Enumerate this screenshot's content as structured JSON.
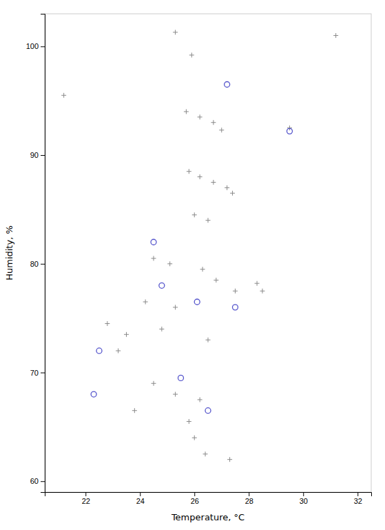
{
  "chart_data": {
    "type": "scatter",
    "xlabel": "Temperature, °C",
    "ylabel": "Humidity, %",
    "xlim": [
      20.5,
      32.5
    ],
    "ylim": [
      59,
      103
    ],
    "xticks": [
      22,
      24,
      26,
      28,
      30,
      32
    ],
    "yticks": [
      60,
      70,
      80,
      90,
      100
    ],
    "grid": false,
    "series": [
      {
        "color": "#888888",
        "marker": "plus",
        "x": [
          21.2,
          25.3,
          25.9,
          25.7,
          26.2,
          26.7,
          27.0,
          25.8,
          26.2,
          26.7,
          27.2,
          27.4,
          26.0,
          26.5,
          24.5,
          25.1,
          26.3,
          26.8,
          28.3,
          27.5,
          24.2,
          25.3,
          22.8,
          24.8,
          23.5,
          26.5,
          23.2,
          24.5,
          25.3,
          26.2,
          23.8,
          25.8,
          26.0,
          26.4,
          27.3,
          31.2,
          29.5,
          28.5
        ],
        "values": [
          95.5,
          101.3,
          99.2,
          94.0,
          93.5,
          93.0,
          92.3,
          88.5,
          88.0,
          87.5,
          87.0,
          86.5,
          84.5,
          84.0,
          80.5,
          80.0,
          79.5,
          78.5,
          78.2,
          77.5,
          76.5,
          76.0,
          74.5,
          74.0,
          73.5,
          73.0,
          72.0,
          69.0,
          68.0,
          67.5,
          66.5,
          65.5,
          64.0,
          62.5,
          62.0,
          101.0,
          92.5,
          77.5
        ]
      },
      {
        "color": "#5555cc",
        "marker": "circle",
        "x": [
          24.5,
          22.5,
          22.3,
          24.8,
          26.1,
          27.5,
          25.5,
          26.5,
          27.2,
          29.5
        ],
        "values": [
          82.0,
          72.0,
          68.0,
          78.0,
          76.5,
          76.0,
          69.5,
          66.5,
          96.5,
          92.2
        ]
      }
    ]
  }
}
